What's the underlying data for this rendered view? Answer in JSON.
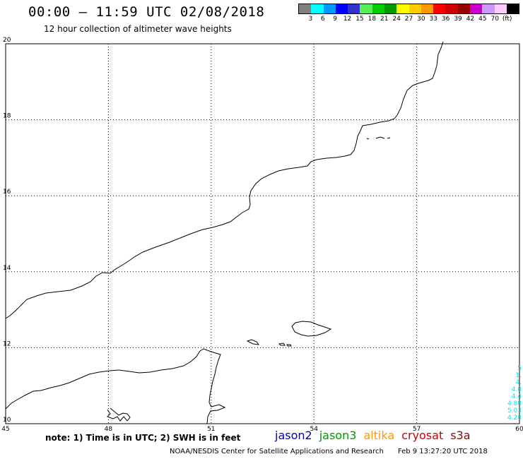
{
  "header": {
    "title": "00:00 – 11:59 UTC 02/08/2018",
    "subtitle": "12 hour collection of altimeter wave heights"
  },
  "legend": {
    "colors": [
      "#808080",
      "#00ffff",
      "#0099ff",
      "#0000ff",
      "#3333cc",
      "#55ee55",
      "#00cc00",
      "#009900",
      "#ffff00",
      "#ffcc00",
      "#ff9900",
      "#ff0000",
      "#cc0000",
      "#990000",
      "#cc00cc",
      "#cc99ff",
      "#ffccff",
      "#000000"
    ],
    "labels": [
      "3",
      "6",
      "9",
      "12",
      "15",
      "18",
      "21",
      "24",
      "27",
      "30",
      "33",
      "36",
      "39",
      "42",
      "45",
      "70",
      "(ft)"
    ]
  },
  "map": {
    "lon_ticks": [
      "45",
      "48",
      "51",
      "54",
      "57",
      "60"
    ],
    "lat_ticks": [
      "20",
      "18",
      "16",
      "14",
      "12",
      "10"
    ],
    "grid_lons": [
      48,
      51,
      54,
      57
    ],
    "grid_lats": [
      18,
      16,
      14,
      12
    ],
    "extent": {
      "lon_min": 45,
      "lon_max": 60,
      "lat_min": 10,
      "lat_max": 20
    }
  },
  "edge_values": [
    "5",
    "1.",
    "4.",
    "4.8",
    "4.4",
    "4.88",
    "5.03",
    "4.28"
  ],
  "footer": {
    "note": "note: 1) Time is in UTC; 2) SWH is in feet",
    "satellites": [
      {
        "name": "jason2",
        "color": "#0000cc"
      },
      {
        "name": "jason3",
        "color": "#009900"
      },
      {
        "name": "altika",
        "color": "#ff9900"
      },
      {
        "name": "cryosat",
        "color": "#cc0000"
      },
      {
        "name": "s3a",
        "color": "#990000"
      }
    ],
    "credit": "NOAA/NESDIS Center for Satellite Applications and Research",
    "timestamp": "Feb  9 13:27:20 UTC 2018"
  }
}
